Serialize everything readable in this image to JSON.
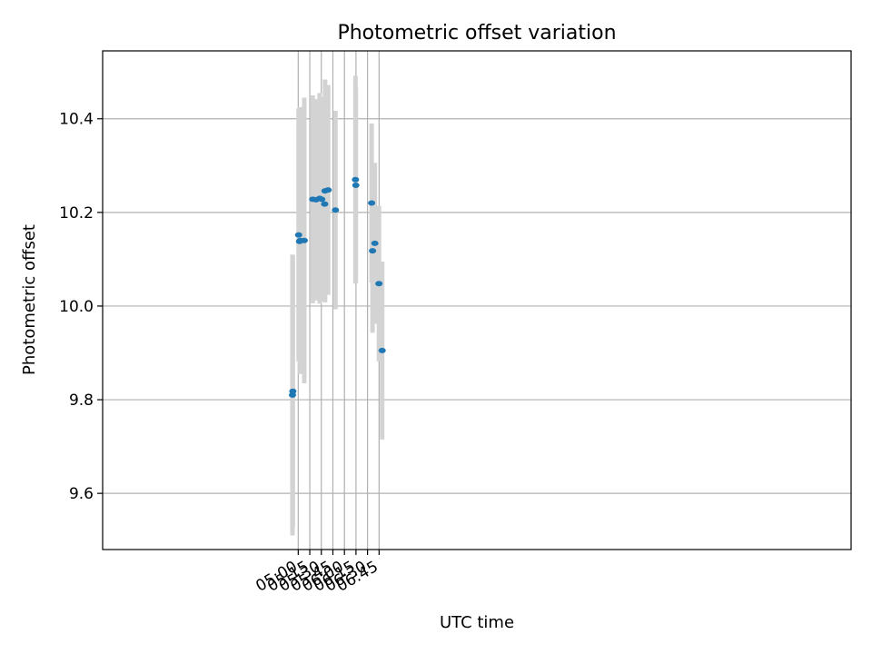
{
  "chart_data": {
    "type": "scatter",
    "title": "Photometric offset variation",
    "xlabel": "UTC time",
    "ylabel": "Photometric offset",
    "grid": true,
    "xlim_minutes": [
      46.0,
      1018.0
    ],
    "ylim": [
      9.48,
      10.545
    ],
    "xticks": [
      "05:00",
      "05:15",
      "05:30",
      "05:45",
      "06:00",
      "06:15",
      "06:30",
      "06:45"
    ],
    "yticks": [
      "9.6",
      "9.8",
      "10.0",
      "10.2",
      "10.4"
    ],
    "marker_color": "#1f77b4",
    "errorbar_color": "#d3d3d3",
    "series": [
      {
        "points": [
          {
            "t": "04:52:30",
            "y": 9.81,
            "err": 0.3
          },
          {
            "t": "04:53:00",
            "y": 9.818,
            "err": 0.29
          },
          {
            "t": "05:00:30",
            "y": 10.152,
            "err": 0.27
          },
          {
            "t": "05:01:40",
            "y": 10.138,
            "err": 0.215
          },
          {
            "t": "05:02:40",
            "y": 10.14,
            "err": 0.285
          },
          {
            "t": "05:07:50",
            "y": 10.14,
            "err": 0.305
          },
          {
            "t": "05:18:50",
            "y": 10.228,
            "err": 0.222
          },
          {
            "t": "05:23:10",
            "y": 10.227,
            "err": 0.215
          },
          {
            "t": "05:27:50",
            "y": 10.23,
            "err": 0.225
          },
          {
            "t": "05:30:30",
            "y": 10.228,
            "err": 0.218
          },
          {
            "t": "05:34:20",
            "y": 10.218,
            "err": 0.208
          },
          {
            "t": "05:34:50",
            "y": 10.246,
            "err": 0.238
          },
          {
            "t": "05:38:50",
            "y": 10.248,
            "err": 0.224
          },
          {
            "t": "05:48:20",
            "y": 10.205,
            "err": 0.212
          },
          {
            "t": "06:14:20",
            "y": 10.27,
            "err": 0.222
          },
          {
            "t": "06:14:50",
            "y": 10.258,
            "err": 0.208
          },
          {
            "t": "06:35:20",
            "y": 10.22,
            "err": 0.17
          },
          {
            "t": "06:36:30",
            "y": 10.118,
            "err": 0.175
          },
          {
            "t": "06:39:30",
            "y": 10.134,
            "err": 0.172
          },
          {
            "t": "06:44:50",
            "y": 10.048,
            "err": 0.166
          },
          {
            "t": "06:49:00",
            "y": 9.905,
            "err": 0.19
          }
        ]
      }
    ]
  }
}
